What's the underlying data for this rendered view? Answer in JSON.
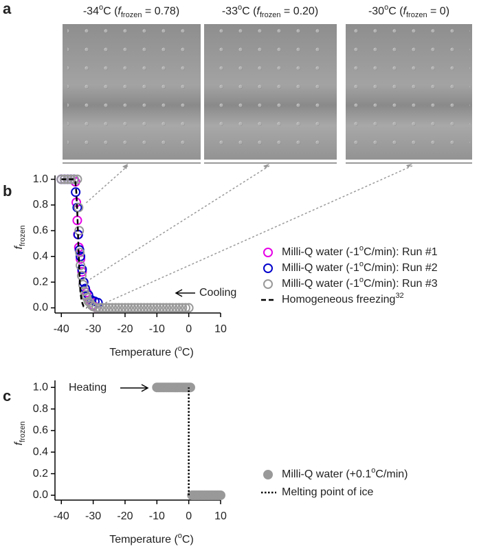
{
  "panel_a": {
    "label": "a",
    "photos": [
      {
        "caption": [
          "-34",
          {
            "sup": "o"
          },
          "C (",
          {
            "i": "f"
          },
          {
            "sub": "frozen"
          },
          " = 0.78)"
        ]
      },
      {
        "caption": [
          "-33",
          {
            "sup": "o"
          },
          "C (",
          {
            "i": "f"
          },
          {
            "sub": "frozen"
          },
          " = 0.20)"
        ]
      },
      {
        "caption": [
          "-30",
          {
            "sup": "o"
          },
          "C (",
          {
            "i": "f"
          },
          {
            "sub": "frozen"
          },
          " = 0)"
        ]
      }
    ]
  },
  "chart_data": [
    {
      "type": "scatter",
      "panel_label": "b",
      "xlabel": [
        "Temperature (",
        {
          "sup": "o"
        },
        "C)"
      ],
      "ylabel": [
        {
          "i": "f"
        },
        {
          "sub": "frozen"
        }
      ],
      "xlim": [
        -42,
        10
      ],
      "xticks": [
        -40,
        -30,
        -20,
        -10,
        0,
        10
      ],
      "ylim": [
        -0.04,
        1.03
      ],
      "yticks": [
        {
          "value": 0,
          "label": "0.0"
        },
        0.2,
        0.4,
        0.6,
        0.8,
        {
          "value": 1,
          "label": "1.0"
        }
      ],
      "annotation": "Cooling",
      "series": [
        {
          "name": [
            "Milli-Q water (-1",
            {
              "sup": "o"
            },
            "C/min): Run #1"
          ],
          "color": "#e600e6",
          "marker": "open-circle",
          "x": [
            -40,
            -39,
            -38,
            -37,
            -36,
            -35.6,
            -35.3,
            -35,
            -34.8,
            -34.5,
            -34,
            -33.5,
            -33,
            -32,
            -31,
            -30,
            -29
          ],
          "values": [
            1,
            1,
            1,
            1,
            1,
            0.98,
            0.82,
            0.68,
            0.57,
            0.47,
            0.38,
            0.28,
            0.2,
            0.12,
            0.06,
            0.02,
            0
          ]
        },
        {
          "name": [
            "Milli-Q water (-1",
            {
              "sup": "o"
            },
            "C/min): Run #2"
          ],
          "color": "#0000cc",
          "marker": "open-circle",
          "x": [
            -40,
            -39,
            -38,
            -37,
            -36,
            -35.5,
            -35,
            -34.7,
            -34.3,
            -34,
            -33.5,
            -33,
            -32.5,
            -31.5,
            -30.5,
            -29.5,
            -28.5
          ],
          "values": [
            1,
            1,
            1,
            1,
            1,
            0.9,
            0.78,
            0.57,
            0.45,
            0.4,
            0.3,
            0.2,
            0.15,
            0.1,
            0.06,
            0.05,
            0.04
          ]
        },
        {
          "name": [
            "Milli-Q water (-1",
            {
              "sup": "o"
            },
            "C/min): Run #3"
          ],
          "color": "#999999",
          "marker": "open-circle",
          "x": [
            -40,
            -39,
            -38,
            -37,
            -36,
            -35,
            -34.6,
            -34.4,
            -34.2,
            -34,
            -33.6,
            -33.2,
            -32.8,
            -32.4,
            -32,
            -31.5,
            -31,
            -30.5,
            -30,
            -29,
            -28,
            -27,
            -26,
            -25,
            -24,
            -23,
            -22,
            -21,
            -20,
            -19,
            -18,
            -17,
            -16,
            -15,
            -14,
            -13,
            -12,
            -11,
            -10,
            -9,
            -8,
            -7,
            -6,
            -5,
            -4,
            -3,
            -2,
            -1,
            0
          ],
          "values": [
            1,
            1,
            1,
            1,
            1,
            1,
            0.78,
            0.6,
            0.43,
            0.33,
            0.25,
            0.18,
            0.13,
            0.1,
            0.08,
            0.05,
            0.04,
            0.02,
            0.01,
            0,
            0,
            0,
            0,
            0,
            0,
            0,
            0,
            0,
            0,
            0,
            0,
            0,
            0,
            0,
            0,
            0,
            0,
            0,
            0,
            0,
            0,
            0,
            0,
            0,
            0,
            0,
            0,
            0,
            0
          ]
        },
        {
          "name": [
            "Homogeneous freezing",
            {
              "sup": "32"
            }
          ],
          "color": "#000000",
          "marker": "none",
          "line": "dashed",
          "x": [
            -40,
            -36,
            -35.6,
            -35.3,
            -35,
            -34.8,
            -34.6,
            -34.4,
            -34.2,
            -34,
            -33.6,
            -33,
            -32
          ],
          "values": [
            1,
            1,
            0.98,
            0.9,
            0.75,
            0.6,
            0.45,
            0.32,
            0.2,
            0.12,
            0.05,
            0.01,
            0
          ]
        }
      ]
    },
    {
      "type": "scatter",
      "panel_label": "c",
      "xlabel": [
        "Temperature (",
        {
          "sup": "o"
        },
        "C)"
      ],
      "ylabel": [
        {
          "i": "f"
        },
        {
          "sub": "frozen"
        }
      ],
      "xlim": [
        -42,
        10
      ],
      "xticks": [
        -40,
        -30,
        -20,
        -10,
        0,
        10
      ],
      "ylim": [
        -0.045,
        1.065
      ],
      "yticks": [
        {
          "value": 0,
          "label": "0.0"
        },
        0.2,
        0.4,
        0.6,
        0.8,
        {
          "value": 1,
          "label": "1.0"
        }
      ],
      "annotation": "Heating",
      "series": [
        {
          "name": [
            "Milli-Q water (+0.1",
            {
              "sup": "o"
            },
            "C/min)"
          ],
          "color": "#999999",
          "marker": "filled-circle",
          "x": [
            -10,
            -9.5,
            -9,
            -8.5,
            -8,
            -7.5,
            -7,
            -6.5,
            -6,
            -5.5,
            -5,
            -4.5,
            -4,
            -3.5,
            -3,
            -2.5,
            -2,
            -1.5,
            -1,
            -0.5,
            0,
            0.5,
            1,
            1.5,
            2,
            2.5,
            3,
            3.5,
            4,
            4.5,
            5,
            5.5,
            6,
            6.5,
            7,
            7.5,
            8,
            8.5,
            9,
            9.5,
            10
          ],
          "values": [
            1,
            1,
            1,
            1,
            1,
            1,
            1,
            1,
            1,
            1,
            1,
            1,
            1,
            1,
            1,
            1,
            1,
            1,
            1,
            1,
            1,
            1,
            0,
            0,
            0,
            0,
            0,
            0,
            0,
            0,
            0,
            0,
            0,
            0,
            0,
            0,
            0,
            0,
            0,
            0,
            0
          ]
        },
        {
          "name": [
            "Melting point of ice"
          ],
          "color": "#000000",
          "marker": "none",
          "line": "dotted",
          "x": [
            0,
            0
          ],
          "values": [
            0,
            1
          ]
        }
      ]
    }
  ]
}
